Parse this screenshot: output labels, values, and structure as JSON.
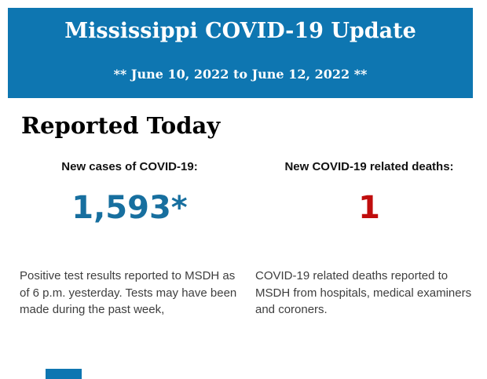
{
  "header": {
    "title": "Mississippi COVID-19 Update",
    "date_range": "** June 10, 2022 to June 12, 2022 **",
    "background_color": "#0e76b1",
    "text_color": "#ffffff"
  },
  "main": {
    "section_title": "Reported Today",
    "stats": [
      {
        "label": "New cases of COVID-19:",
        "value": "1,593*",
        "value_color": "#176f9f",
        "description": "Positive test results reported to MSDH as\nof 6 p.m. yesterday. Tests may have been\nmade during the past week,"
      },
      {
        "label": "New COVID-19 related deaths:",
        "value": "1",
        "value_color": "#c00d0d",
        "description": "COVID-19 related deaths reported to\nMSDH from hospitals, medical examiners\nand coroners."
      }
    ]
  },
  "footer": {
    "partial_block_color": "#0e76b1"
  }
}
